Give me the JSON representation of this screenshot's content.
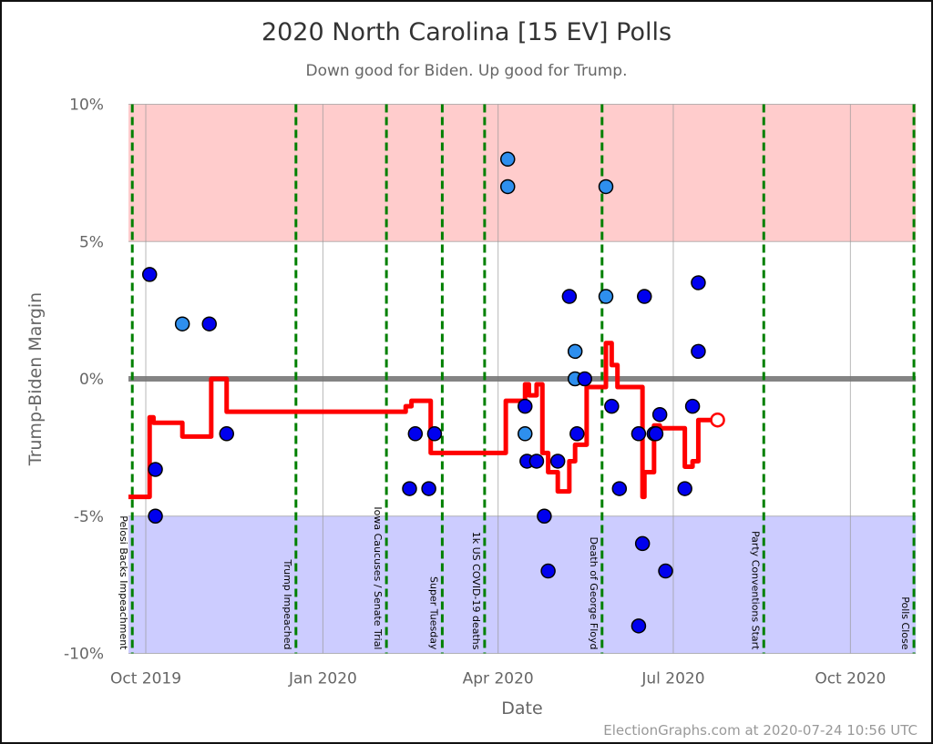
{
  "chart_data": {
    "type": "scatter",
    "title": "2020 North Carolina [15 EV] Polls",
    "subtitle": "Down good for Biden. Up good for Trump.",
    "xlabel": "Date",
    "ylabel": "Trump-Biden Margin",
    "xlim": [
      "2019-09-22",
      "2020-11-04"
    ],
    "ylim": [
      -10,
      10
    ],
    "y_ticks": [
      {
        "value": 10,
        "label": "10%"
      },
      {
        "value": 5,
        "label": "5%"
      },
      {
        "value": 0,
        "label": "0%"
      },
      {
        "value": -5,
        "label": "-5%"
      },
      {
        "value": -10,
        "label": "-10%"
      }
    ],
    "x_ticks": [
      {
        "date": "2019-10-01",
        "label": "Oct 2019"
      },
      {
        "date": "2020-01-01",
        "label": "Jan 2020"
      },
      {
        "date": "2020-04-01",
        "label": "Apr 2020"
      },
      {
        "date": "2020-07-01",
        "label": "Jul 2020"
      },
      {
        "date": "2020-10-01",
        "label": "Oct 2020"
      }
    ],
    "grid": true,
    "bands": [
      {
        "from": 5,
        "to": 10,
        "color": "#ffcccc"
      },
      {
        "from": -10,
        "to": -5,
        "color": "#ccccff"
      }
    ],
    "colors": {
      "poll": "#0000ee",
      "poll_light": "#2e8fee",
      "trend": "#ff0000",
      "event_line": "#008000",
      "zero_line": "#777777"
    },
    "events": [
      {
        "date": "2019-09-24",
        "label": "Pelosi Backs Impeachment"
      },
      {
        "date": "2019-12-18",
        "label": "Trump Impeached"
      },
      {
        "date": "2020-02-03",
        "label": "Iowa Caucuses / Senate Trial"
      },
      {
        "date": "2020-03-03",
        "label": "Super Tuesday"
      },
      {
        "date": "2020-03-25",
        "label": "1k US COVID-19 deaths"
      },
      {
        "date": "2020-05-25",
        "label": "Death of George Floyd"
      },
      {
        "date": "2020-08-17",
        "label": "Party Conventions Start"
      },
      {
        "date": "2020-11-03",
        "label": "Polls Close"
      }
    ],
    "polls": [
      {
        "date": "2019-10-03",
        "value": 3.8,
        "light": false
      },
      {
        "date": "2019-10-06",
        "value": -3.3,
        "light": false
      },
      {
        "date": "2019-10-06",
        "value": -5,
        "light": false
      },
      {
        "date": "2019-10-20",
        "value": 2,
        "light": true
      },
      {
        "date": "2019-11-03",
        "value": 2,
        "light": false
      },
      {
        "date": "2019-11-12",
        "value": -2,
        "light": false
      },
      {
        "date": "2020-02-15",
        "value": -4,
        "light": false
      },
      {
        "date": "2020-02-18",
        "value": -2,
        "light": false
      },
      {
        "date": "2020-02-25",
        "value": -4,
        "light": false
      },
      {
        "date": "2020-02-28",
        "value": -2,
        "light": false
      },
      {
        "date": "2020-04-06",
        "value": 8,
        "light": true
      },
      {
        "date": "2020-04-06",
        "value": 7,
        "light": true
      },
      {
        "date": "2020-04-15",
        "value": -1,
        "light": false
      },
      {
        "date": "2020-04-15",
        "value": -2,
        "light": true
      },
      {
        "date": "2020-04-16",
        "value": -3,
        "light": false
      },
      {
        "date": "2020-04-21",
        "value": -3,
        "light": false
      },
      {
        "date": "2020-04-25",
        "value": -5,
        "light": false
      },
      {
        "date": "2020-04-27",
        "value": -7,
        "light": false
      },
      {
        "date": "2020-05-02",
        "value": -3,
        "light": false
      },
      {
        "date": "2020-05-08",
        "value": 3,
        "light": false
      },
      {
        "date": "2020-05-11",
        "value": 1,
        "light": true
      },
      {
        "date": "2020-05-11",
        "value": 0,
        "light": true
      },
      {
        "date": "2020-05-16",
        "value": 0,
        "light": false
      },
      {
        "date": "2020-05-12",
        "value": -2,
        "light": false
      },
      {
        "date": "2020-05-27",
        "value": 7,
        "light": true
      },
      {
        "date": "2020-05-27",
        "value": 3,
        "light": true
      },
      {
        "date": "2020-05-30",
        "value": -1,
        "light": false
      },
      {
        "date": "2020-06-03",
        "value": -4,
        "light": false
      },
      {
        "date": "2020-06-13",
        "value": -9,
        "light": false
      },
      {
        "date": "2020-06-13",
        "value": -2,
        "light": false
      },
      {
        "date": "2020-06-15",
        "value": -6,
        "light": false
      },
      {
        "date": "2020-06-16",
        "value": 3,
        "light": false
      },
      {
        "date": "2020-06-21",
        "value": -2,
        "light": false
      },
      {
        "date": "2020-06-22",
        "value": -2,
        "light": false
      },
      {
        "date": "2020-06-24",
        "value": -1.3,
        "light": false
      },
      {
        "date": "2020-06-27",
        "value": -7,
        "light": false
      },
      {
        "date": "2020-07-07",
        "value": -4,
        "light": false
      },
      {
        "date": "2020-07-11",
        "value": -1,
        "light": false
      },
      {
        "date": "2020-07-14",
        "value": 3.5,
        "light": false
      },
      {
        "date": "2020-07-14",
        "value": 1,
        "light": false
      }
    ],
    "trend_steps": [
      {
        "date": "2019-09-22",
        "value": -4.3
      },
      {
        "date": "2019-10-03",
        "value": -1.4
      },
      {
        "date": "2019-10-05",
        "value": -1.6
      },
      {
        "date": "2019-10-20",
        "value": -2.1
      },
      {
        "date": "2019-11-04",
        "value": 0
      },
      {
        "date": "2019-11-12",
        "value": -1.2
      },
      {
        "date": "2020-02-13",
        "value": -1.0
      },
      {
        "date": "2020-02-16",
        "value": -0.8
      },
      {
        "date": "2020-02-26",
        "value": -2.7
      },
      {
        "date": "2020-04-05",
        "value": -0.8
      },
      {
        "date": "2020-04-15",
        "value": -0.2
      },
      {
        "date": "2020-04-17",
        "value": -0.6
      },
      {
        "date": "2020-04-21",
        "value": -0.2
      },
      {
        "date": "2020-04-24",
        "value": -2.7
      },
      {
        "date": "2020-04-27",
        "value": -3.4
      },
      {
        "date": "2020-05-02",
        "value": -4.1
      },
      {
        "date": "2020-05-08",
        "value": -3.0
      },
      {
        "date": "2020-05-11",
        "value": -2.4
      },
      {
        "date": "2020-05-17",
        "value": -0.3
      },
      {
        "date": "2020-05-27",
        "value": 1.3
      },
      {
        "date": "2020-05-30",
        "value": 0.5
      },
      {
        "date": "2020-06-02",
        "value": -0.3
      },
      {
        "date": "2020-06-15",
        "value": -4.3
      },
      {
        "date": "2020-06-16",
        "value": -3.4
      },
      {
        "date": "2020-06-21",
        "value": -1.7
      },
      {
        "date": "2020-06-24",
        "value": -1.8
      },
      {
        "date": "2020-07-07",
        "value": -3.2
      },
      {
        "date": "2020-07-11",
        "value": -3.0
      },
      {
        "date": "2020-07-14",
        "value": -1.5
      }
    ],
    "trend_end": {
      "date": "2020-07-24",
      "value": -1.5
    }
  },
  "credit": "ElectionGraphs.com at 2020-07-24 10:56 UTC"
}
